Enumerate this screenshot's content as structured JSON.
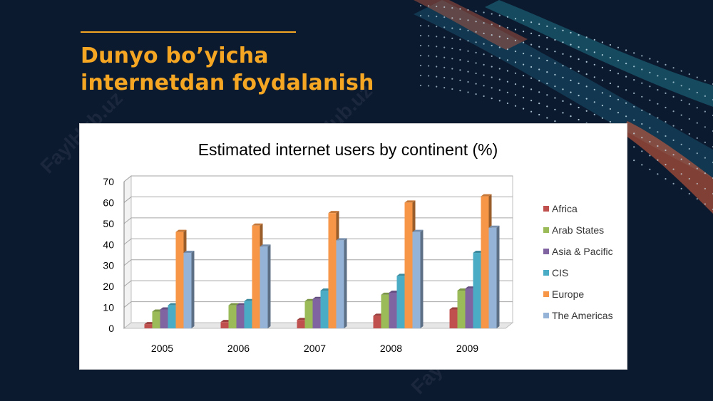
{
  "slide": {
    "title_line1": "Dunyo bo’yicha",
    "title_line2": "internetdan foydalanish",
    "accent_color": "#f5a623",
    "background_color": "#0c1a30",
    "watermark_text": "FaylHub.uz"
  },
  "chart_data": {
    "type": "bar",
    "style": "3d-clustered-column",
    "title": "Estimated internet users by continent (%)",
    "xlabel": "",
    "ylabel": "",
    "ylim": [
      0,
      70
    ],
    "yticks": [
      0,
      10,
      20,
      30,
      40,
      50,
      60,
      70
    ],
    "grid": true,
    "legend_position": "right",
    "categories": [
      "2005",
      "2006",
      "2007",
      "2008",
      "2009"
    ],
    "series": [
      {
        "name": "Africa",
        "color": "#c0504d",
        "values": [
          2,
          3,
          4,
          6,
          9
        ]
      },
      {
        "name": "Arab States",
        "color": "#9bbb59",
        "values": [
          8,
          11,
          13,
          16,
          18
        ]
      },
      {
        "name": "Asia & Pacific",
        "color": "#8064a2",
        "values": [
          9,
          11,
          14,
          17,
          19
        ]
      },
      {
        "name": "CIS",
        "color": "#4bacc6",
        "values": [
          11,
          13,
          18,
          25,
          36
        ]
      },
      {
        "name": "Europe",
        "color": "#f79646",
        "values": [
          46,
          49,
          55,
          60,
          63
        ]
      },
      {
        "name": "The Americas",
        "color": "#95b3d7",
        "values": [
          36,
          39,
          42,
          46,
          48
        ]
      }
    ]
  }
}
